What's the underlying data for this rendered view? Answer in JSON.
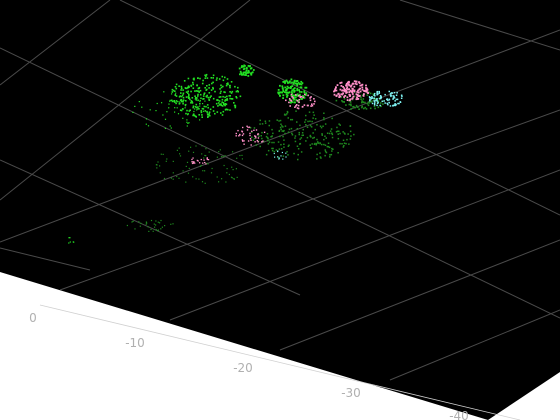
{
  "view": {
    "background_color": "#000000",
    "grid_color": "#4a4a4a",
    "outer_color": "#ffffff"
  },
  "axis": {
    "tick_labels": [
      "0",
      "-10",
      "-20",
      "-30",
      "-40"
    ],
    "tick_label_color": "#b0b0b0"
  },
  "point_cloud": {
    "series": [
      {
        "name": "",
        "color": "#23e023"
      },
      {
        "name": "",
        "color": "#1f8a1f"
      },
      {
        "name": "",
        "color": "#ff8fc8"
      },
      {
        "name": "",
        "color": "#7ff2f2"
      }
    ]
  }
}
